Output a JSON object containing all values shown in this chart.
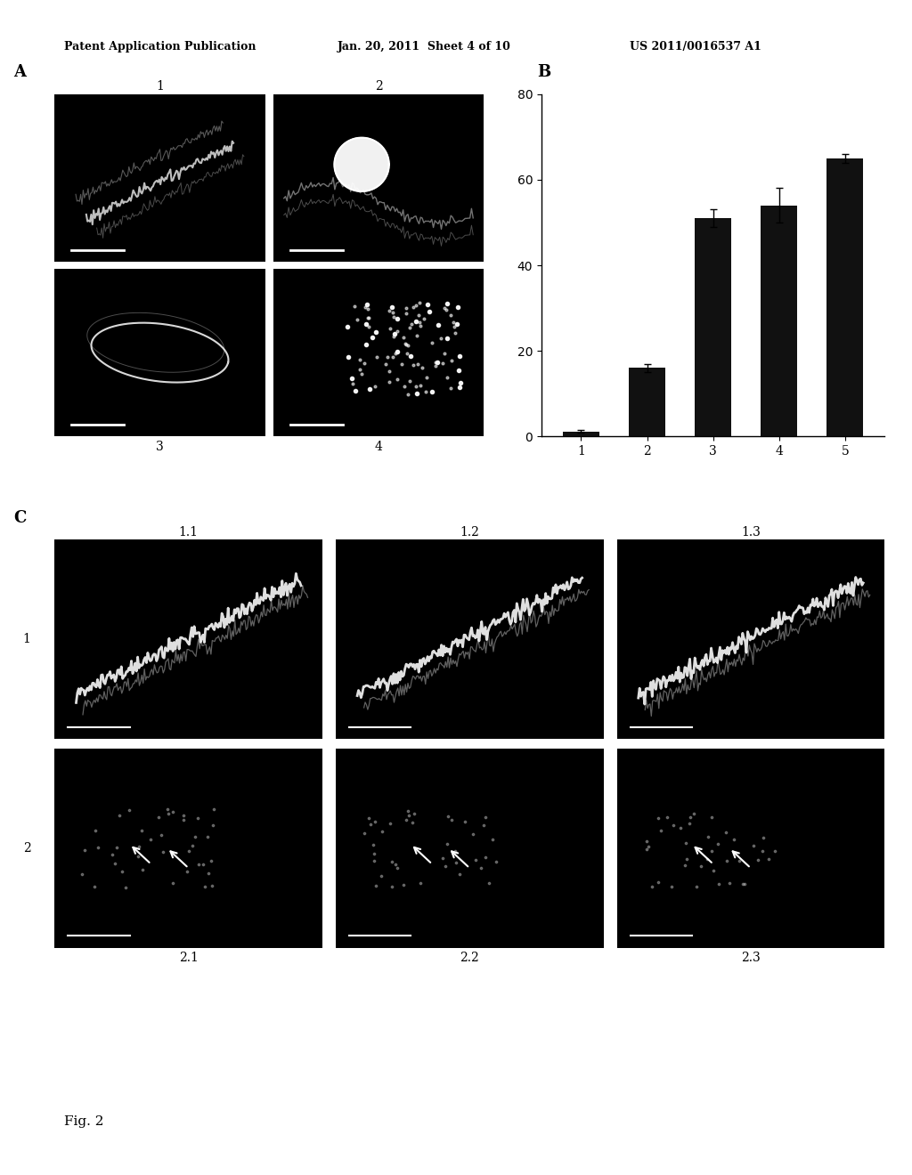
{
  "header_left": "Patent Application Publication",
  "header_mid": "Jan. 20, 2011  Sheet 4 of 10",
  "header_right": "US 2011/0016537 A1",
  "fig_label": "Fig. 2",
  "section_A_label": "A",
  "section_B_label": "B",
  "section_C_label": "C",
  "panel_labels_A_top": [
    "1",
    "2"
  ],
  "panel_labels_A_bot": [
    "3",
    "4"
  ],
  "panel_labels_C_col": [
    "1.1",
    "1.2",
    "1.3"
  ],
  "panel_labels_C_bot": [
    "2.1",
    "2.2",
    "2.3"
  ],
  "bar_values": [
    1.2,
    16.0,
    51.0,
    54.0,
    65.0
  ],
  "bar_errors": [
    0.3,
    1.0,
    2.0,
    4.0,
    1.0
  ],
  "bar_categories": [
    "1",
    "2",
    "3",
    "4",
    "5"
  ],
  "bar_color": "#111111",
  "ylim": [
    0,
    80
  ],
  "yticks": [
    0,
    20,
    40,
    60,
    80
  ],
  "background_color": "#ffffff",
  "image_bg": "#000000"
}
